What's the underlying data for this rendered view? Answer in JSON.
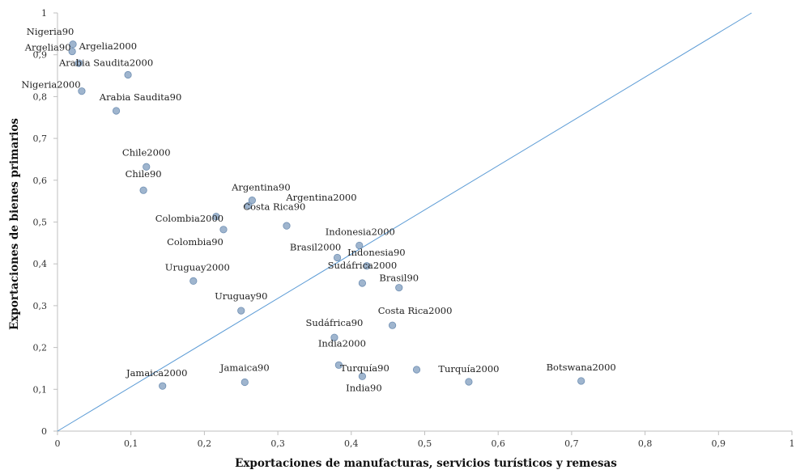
{
  "chart_data": {
    "type": "scatter",
    "xlabel": "Exportaciones de manufacturas, servicios turísticos y remesas",
    "ylabel": "Exportaciones de bienes primarios",
    "xlim": [
      0,
      1
    ],
    "ylim": [
      0,
      1
    ],
    "x_ticks": [
      "0",
      "0,1",
      "0,2",
      "0,3",
      "0,4",
      "0,5",
      "0,6",
      "0,7",
      "0,8",
      "0,9",
      "1"
    ],
    "y_ticks": [
      "0",
      "0,1",
      "0,2",
      "0,3",
      "0,4",
      "0,5",
      "0,6",
      "0,7",
      "0,8",
      "0,9",
      "1"
    ],
    "grid": false,
    "reference_line": {
      "from": [
        0,
        0
      ],
      "to": [
        0.945,
        1.0
      ]
    },
    "marker_color": "#9FB5CE",
    "marker_edge_color": "#6F8FB3",
    "line_color": "#5B9BD5",
    "points": [
      {
        "label": "Nigeria90",
        "x": 0.021,
        "y": 0.925
      },
      {
        "label": "Argelia90",
        "x": 0.02,
        "y": 0.908
      },
      {
        "label": "Argelia2000",
        "x": 0.029,
        "y": 0.88
      },
      {
        "label": "Arabia Saudita2000",
        "x": 0.096,
        "y": 0.852
      },
      {
        "label": "Nigeria2000",
        "x": 0.033,
        "y": 0.813
      },
      {
        "label": "Arabia Saudita90",
        "x": 0.08,
        "y": 0.766
      },
      {
        "label": "Chile2000",
        "x": 0.121,
        "y": 0.632
      },
      {
        "label": "Chile90",
        "x": 0.117,
        "y": 0.576
      },
      {
        "label": "Argentina90",
        "x": 0.265,
        "y": 0.552
      },
      {
        "label": "Costa Rica90",
        "x": 0.26,
        "y": 0.539
      },
      {
        "label": "Colombia2000",
        "x": 0.216,
        "y": 0.513
      },
      {
        "label": "Argentina2000",
        "x": 0.312,
        "y": 0.491
      },
      {
        "label": "Colombia90",
        "x": 0.226,
        "y": 0.482
      },
      {
        "label": "Indonesia2000",
        "x": 0.411,
        "y": 0.444
      },
      {
        "label": "Brasil2000",
        "x": 0.381,
        "y": 0.415
      },
      {
        "label": "Indonesia90",
        "x": 0.421,
        "y": 0.395
      },
      {
        "label": "Uruguay2000",
        "x": 0.185,
        "y": 0.359
      },
      {
        "label": "Sudáfrica2000",
        "x": 0.415,
        "y": 0.354
      },
      {
        "label": "Brasil90",
        "x": 0.465,
        "y": 0.343
      },
      {
        "label": "Uruguay90",
        "x": 0.25,
        "y": 0.288
      },
      {
        "label": "Costa Rica2000",
        "x": 0.456,
        "y": 0.253
      },
      {
        "label": "Sudáfrica90",
        "x": 0.377,
        "y": 0.224
      },
      {
        "label": "India2000",
        "x": 0.383,
        "y": 0.158
      },
      {
        "label": "Turquía90",
        "x": 0.489,
        "y": 0.147
      },
      {
        "label": "India90",
        "x": 0.415,
        "y": 0.131
      },
      {
        "label": "Jamaica90",
        "x": 0.255,
        "y": 0.117
      },
      {
        "label": "Turquía2000",
        "x": 0.56,
        "y": 0.118
      },
      {
        "label": "Botswana2000",
        "x": 0.713,
        "y": 0.12
      },
      {
        "label": "Jamaica2000",
        "x": 0.143,
        "y": 0.108
      }
    ]
  }
}
